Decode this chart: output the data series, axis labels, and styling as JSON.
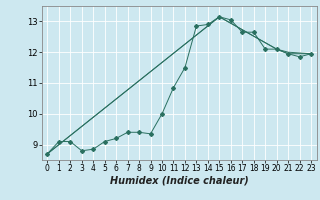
{
  "xlabel": "Humidex (Indice chaleur)",
  "bg_color": "#cde8f0",
  "line_color": "#2a7060",
  "xlim": [
    -0.5,
    23.5
  ],
  "ylim": [
    8.5,
    13.5
  ],
  "yticks": [
    9,
    10,
    11,
    12,
    13
  ],
  "xticks": [
    0,
    1,
    2,
    3,
    4,
    5,
    6,
    7,
    8,
    9,
    10,
    11,
    12,
    13,
    14,
    15,
    16,
    17,
    18,
    19,
    20,
    21,
    22,
    23
  ],
  "series_main": {
    "x": [
      0,
      1,
      2,
      3,
      4,
      5,
      6,
      7,
      8,
      9,
      10,
      11,
      12,
      13,
      14,
      15,
      16,
      17,
      18,
      19,
      20,
      21,
      22,
      23
    ],
    "y": [
      8.7,
      9.1,
      9.1,
      8.8,
      8.85,
      9.1,
      9.2,
      9.4,
      9.4,
      9.35,
      10.0,
      10.85,
      11.5,
      12.85,
      12.9,
      13.15,
      13.05,
      12.65,
      12.65,
      12.1,
      12.1,
      11.95,
      11.85,
      11.95
    ]
  },
  "series_line1": {
    "x": [
      0,
      15,
      20,
      21,
      23
    ],
    "y": [
      8.7,
      13.15,
      12.1,
      11.95,
      11.95
    ]
  },
  "series_line2": {
    "x": [
      0,
      15,
      20,
      21,
      23
    ],
    "y": [
      8.7,
      13.15,
      12.1,
      12.0,
      11.95
    ]
  },
  "grid_color": "#ffffff",
  "spine_color": "#888888"
}
